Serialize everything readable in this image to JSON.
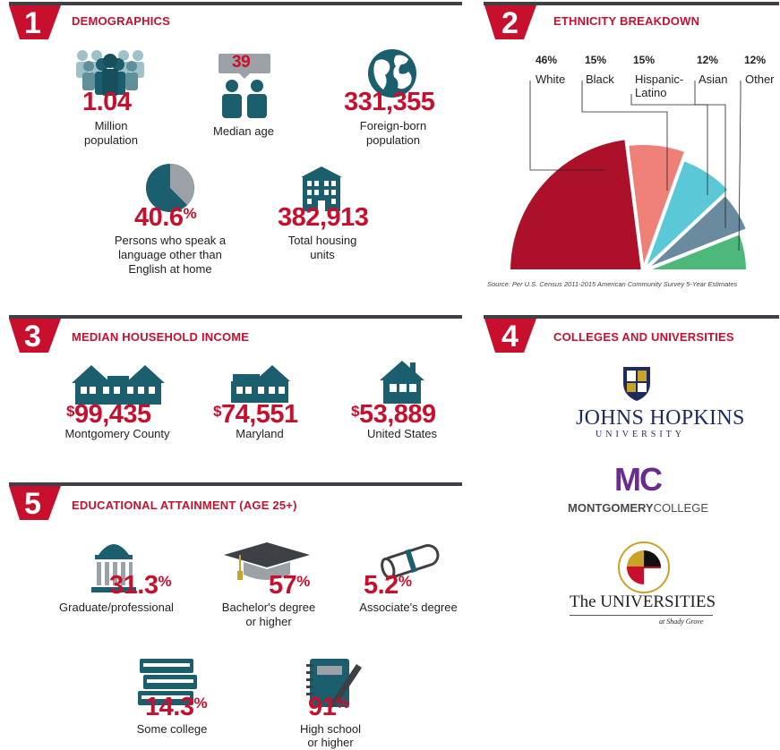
{
  "sections": {
    "demographics": {
      "number": "1",
      "title": "DEMOGRAPHICS"
    },
    "ethnicity": {
      "number": "2",
      "title": "ETHNICITY BREAKDOWN"
    },
    "income": {
      "number": "3",
      "title": "MEDIAN HOUSEHOLD INCOME"
    },
    "colleges": {
      "number": "4",
      "title": "COLLEGES AND UNIVERSITIES"
    },
    "education": {
      "number": "5",
      "title": "EDUCATIONAL ATTAINMENT (AGE 25+)"
    }
  },
  "demographics": {
    "population": {
      "value": "1.04",
      "label1": "Million",
      "label2": "population"
    },
    "median_age": {
      "value": "39",
      "label": "Median age"
    },
    "foreign_born": {
      "value": "331,355",
      "label1": "Foreign-born",
      "label2": "population"
    },
    "language": {
      "value": "40.6",
      "unit": "%",
      "label1": "Persons who speak a",
      "label2": "language other than",
      "label3": "English at home"
    },
    "housing": {
      "value": "382,913",
      "label1": "Total housing",
      "label2": "units"
    }
  },
  "income": {
    "montgomery": {
      "currency": "$",
      "value": "99,435",
      "label": "Montgomery County"
    },
    "maryland": {
      "currency": "$",
      "value": "74,551",
      "label": "Maryland"
    },
    "us": {
      "currency": "$",
      "value": "53,889",
      "label": "United States"
    }
  },
  "colleges": {
    "jhu": {
      "name": "JOHNS HOPKINS",
      "sub": "UNIVERSITY"
    },
    "mc": {
      "mark": "MC",
      "name_bold": "MONTGOMERY",
      "name_rest": "COLLEGE"
    },
    "usg": {
      "name": "The UNIVERSITIES",
      "sub": "at Shady Grove",
      "seal_text": "UNIVERSITY SYSTEM OF MARYLAND"
    }
  },
  "education": {
    "graduate": {
      "value": "31.3",
      "unit": "%",
      "label": "Graduate/professional"
    },
    "bachelor": {
      "value": "57",
      "unit": "%",
      "label1": "Bachelor's degree",
      "label2": "or higher"
    },
    "associate": {
      "value": "5.2",
      "unit": "%",
      "label": "Associate's degree"
    },
    "some_college": {
      "value": "14.3",
      "unit": "%",
      "label": "Some college"
    },
    "high_school": {
      "value": "91",
      "unit": "%",
      "label1": "High school",
      "label2": "or higher"
    }
  },
  "colors": {
    "accent_red": "#c8102e",
    "teal": "#1b5e6e",
    "bar_gray": "#3d4145",
    "white_slice": "#ad1029",
    "black_slice": "#ee8078",
    "hispanic_slice": "#5bc8d8",
    "asian_slice": "#6a8aa0",
    "other_slice": "#4cb87a"
  },
  "chart_data": {
    "type": "pie",
    "title": "ETHNICITY BREAKDOWN",
    "categories": [
      "White",
      "Black",
      "Hispanic-Latino",
      "Asian",
      "Other"
    ],
    "category_display": [
      "White",
      "Black",
      "Hispanic-\nLatino",
      "Asian",
      "Other"
    ],
    "values": [
      46,
      15,
      15,
      12,
      12
    ],
    "value_labels": [
      "46%",
      "15%",
      "15%",
      "12%",
      "12%"
    ],
    "colors": [
      "#ad1029",
      "#ee8078",
      "#5bc8d8",
      "#6a8aa0",
      "#4cb87a"
    ],
    "source": "Source: Per U.S. Census 2011-2015 American Community Survey 5-Year Estimates"
  }
}
